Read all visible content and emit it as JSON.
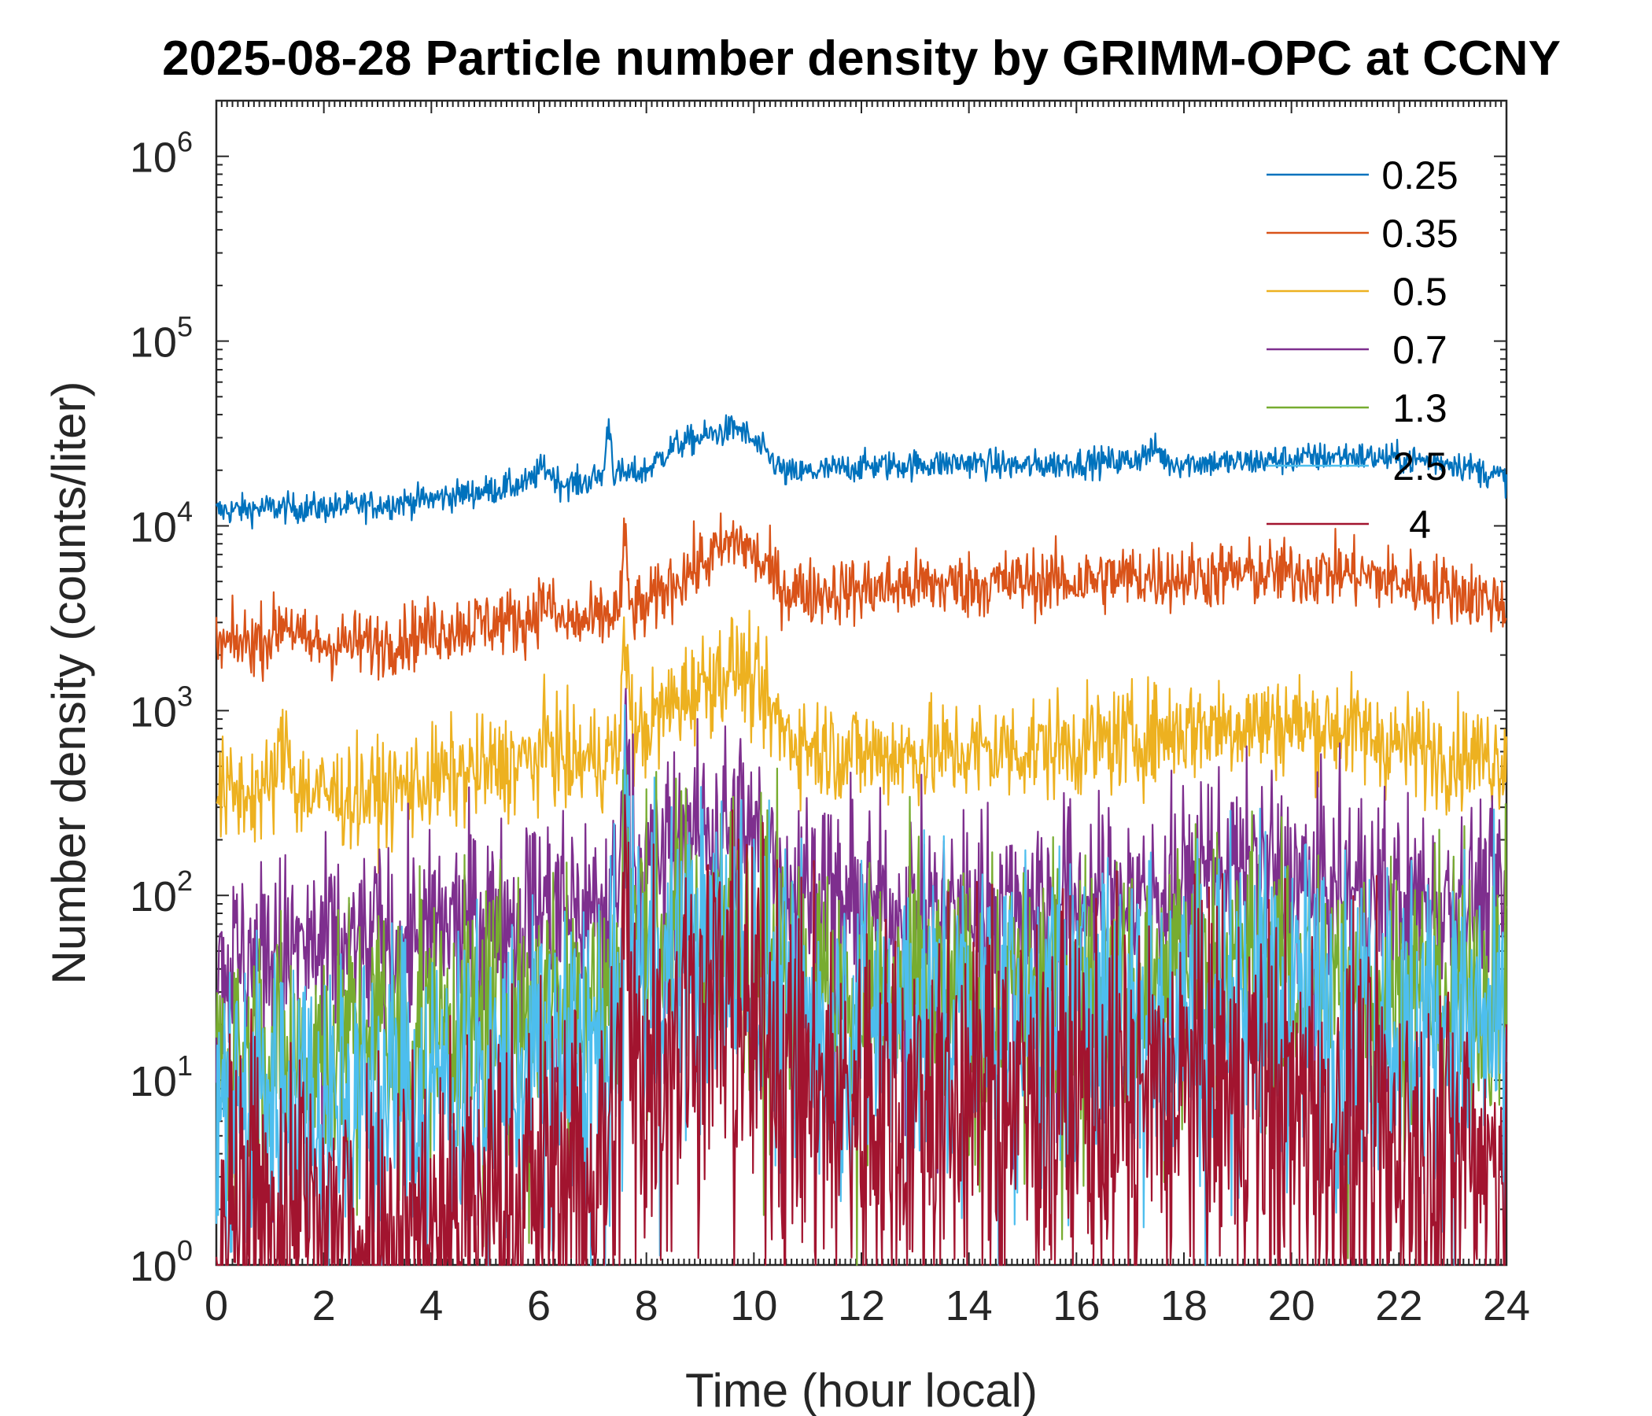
{
  "chart_data": {
    "type": "line",
    "title": "2025-08-28 Particle number density by GRIMM-OPC at CCNY",
    "xlabel": "Time (hour local)",
    "ylabel": "Number density (counts/liter)",
    "xlim": [
      0,
      24
    ],
    "ylim": [
      1,
      2000000
    ],
    "yscale": "log",
    "x_ticks": [
      0,
      2,
      4,
      6,
      8,
      10,
      12,
      14,
      16,
      18,
      20,
      22,
      24
    ],
    "y_ticks": [
      {
        "value": 1,
        "base": "10",
        "exp": "0"
      },
      {
        "value": 10,
        "base": "10",
        "exp": "1"
      },
      {
        "value": 100,
        "base": "10",
        "exp": "2"
      },
      {
        "value": 1000,
        "base": "10",
        "exp": "3"
      },
      {
        "value": 10000,
        "base": "10",
        "exp": "4"
      },
      {
        "value": 100000,
        "base": "10",
        "exp": "5"
      },
      {
        "value": 1000000,
        "base": "10",
        "exp": "6"
      }
    ],
    "legend_position": "top-right",
    "series": [
      {
        "name": "0.25",
        "color": "#0072BD",
        "noise": 0.04,
        "spike_scale": 1.0,
        "points": [
          [
            0,
            12000
          ],
          [
            1,
            12500
          ],
          [
            2,
            12500
          ],
          [
            3,
            13000
          ],
          [
            4,
            14000
          ],
          [
            5,
            15500
          ],
          [
            5.8,
            17000
          ],
          [
            6.1,
            21000
          ],
          [
            6.4,
            17000
          ],
          [
            6.8,
            17000
          ],
          [
            7.2,
            19000
          ],
          [
            7.3,
            38000
          ],
          [
            7.4,
            19000
          ],
          [
            7.7,
            19000
          ],
          [
            8.0,
            20000
          ],
          [
            8.5,
            27000
          ],
          [
            9.0,
            30000
          ],
          [
            9.7,
            34000
          ],
          [
            10.2,
            25000
          ],
          [
            10.6,
            19000
          ],
          [
            11,
            19500
          ],
          [
            12,
            21000
          ],
          [
            13,
            21500
          ],
          [
            14,
            22000
          ],
          [
            15,
            21000
          ],
          [
            16,
            22000
          ],
          [
            17,
            22500
          ],
          [
            17.5,
            26000
          ],
          [
            17.7,
            22000
          ],
          [
            18,
            22000
          ],
          [
            19,
            22000
          ],
          [
            20,
            23000
          ],
          [
            21,
            24000
          ],
          [
            22,
            23000
          ],
          [
            23,
            22000
          ],
          [
            24,
            18000
          ]
        ]
      },
      {
        "name": "0.35",
        "color": "#D95319",
        "noise": 0.09,
        "spike_scale": 2.5,
        "points": [
          [
            0,
            2200
          ],
          [
            1,
            2500
          ],
          [
            1.3,
            3200
          ],
          [
            1.6,
            2300
          ],
          [
            2,
            2300
          ],
          [
            3,
            2300
          ],
          [
            4,
            2700
          ],
          [
            5,
            3000
          ],
          [
            5.8,
            3100
          ],
          [
            6.1,
            4000
          ],
          [
            6.4,
            3000
          ],
          [
            7,
            3000
          ],
          [
            7.5,
            3500
          ],
          [
            7.6,
            8500
          ],
          [
            7.7,
            3500
          ],
          [
            8.0,
            3600
          ],
          [
            8.5,
            5000
          ],
          [
            9.0,
            6200
          ],
          [
            9.7,
            8500
          ],
          [
            10.2,
            6000
          ],
          [
            10.6,
            4500
          ],
          [
            11,
            4400
          ],
          [
            12,
            4500
          ],
          [
            13,
            4800
          ],
          [
            14,
            4800
          ],
          [
            15,
            5000
          ],
          [
            16,
            5000
          ],
          [
            17,
            5300
          ],
          [
            18,
            5300
          ],
          [
            19,
            5500
          ],
          [
            20,
            5500
          ],
          [
            21,
            5600
          ],
          [
            22,
            5000
          ],
          [
            23,
            4500
          ],
          [
            24,
            3800
          ]
        ]
      },
      {
        "name": "0.5",
        "color": "#EDB120",
        "noise": 0.14,
        "spike_scale": 6.0,
        "points": [
          [
            0,
            350
          ],
          [
            1,
            370
          ],
          [
            1.3,
            700
          ],
          [
            1.5,
            380
          ],
          [
            2,
            350
          ],
          [
            3,
            350
          ],
          [
            4,
            420
          ],
          [
            5,
            480
          ],
          [
            6,
            550
          ],
          [
            6.2,
            700
          ],
          [
            6.5,
            520
          ],
          [
            7,
            550
          ],
          [
            7.5,
            600
          ],
          [
            7.6,
            2800
          ],
          [
            7.75,
            700
          ],
          [
            8,
            800
          ],
          [
            8.5,
            1100
          ],
          [
            9,
            1400
          ],
          [
            9.7,
            1800
          ],
          [
            10.2,
            1100
          ],
          [
            10.6,
            750
          ],
          [
            11,
            650
          ],
          [
            12,
            580
          ],
          [
            13,
            580
          ],
          [
            14,
            600
          ],
          [
            15,
            620
          ],
          [
            16,
            650
          ],
          [
            17,
            700
          ],
          [
            18,
            800
          ],
          [
            19,
            850
          ],
          [
            20,
            850
          ],
          [
            21,
            800
          ],
          [
            22,
            650
          ],
          [
            23,
            580
          ],
          [
            24,
            560
          ]
        ]
      },
      {
        "name": "0.7",
        "color": "#7E2F8E",
        "noise": 0.26,
        "spike_scale": 12.0,
        "points": [
          [
            0,
            40
          ],
          [
            1,
            50
          ],
          [
            2,
            50
          ],
          [
            3,
            55
          ],
          [
            4,
            60
          ],
          [
            5,
            75
          ],
          [
            6,
            85
          ],
          [
            7,
            90
          ],
          [
            7.5,
            95
          ],
          [
            7.6,
            1300
          ],
          [
            7.7,
            250
          ],
          [
            7.8,
            150
          ],
          [
            8,
            140
          ],
          [
            8.5,
            200
          ],
          [
            9,
            230
          ],
          [
            9.7,
            250
          ],
          [
            10.3,
            160
          ],
          [
            10.6,
            120
          ],
          [
            11,
            110
          ],
          [
            12,
            85
          ],
          [
            13,
            80
          ],
          [
            14,
            85
          ],
          [
            15,
            90
          ],
          [
            16,
            95
          ],
          [
            17,
            95
          ],
          [
            18,
            110
          ],
          [
            18.5,
            150
          ],
          [
            19,
            150
          ],
          [
            20,
            120
          ],
          [
            21,
            110
          ],
          [
            22,
            100
          ],
          [
            23,
            100
          ],
          [
            24,
            100
          ]
        ]
      },
      {
        "name": "1.3",
        "color": "#77AC30",
        "noise": 0.36,
        "spike_scale": 15.0,
        "points": [
          [
            0,
            12
          ],
          [
            1,
            12
          ],
          [
            2,
            15
          ],
          [
            3,
            18
          ],
          [
            4,
            20
          ],
          [
            5,
            22
          ],
          [
            6,
            25
          ],
          [
            7,
            28
          ],
          [
            7.5,
            30
          ],
          [
            7.6,
            500
          ],
          [
            7.7,
            80
          ],
          [
            8,
            60
          ],
          [
            8.5,
            65
          ],
          [
            9,
            70
          ],
          [
            9.7,
            75
          ],
          [
            10.3,
            50
          ],
          [
            10.6,
            35
          ],
          [
            11,
            30
          ],
          [
            12,
            27
          ],
          [
            13,
            27
          ],
          [
            14,
            28
          ],
          [
            15,
            30
          ],
          [
            16,
            30
          ],
          [
            17,
            30
          ],
          [
            18,
            40
          ],
          [
            19,
            45
          ],
          [
            20,
            38
          ],
          [
            21,
            32
          ],
          [
            22,
            30
          ],
          [
            23,
            30
          ],
          [
            24,
            35
          ]
        ]
      },
      {
        "name": "2.5",
        "color": "#4DBEEE",
        "noise": 0.45,
        "spike_scale": 20.0,
        "points": [
          [
            0,
            8
          ],
          [
            1,
            8
          ],
          [
            2,
            8
          ],
          [
            3,
            8
          ],
          [
            4,
            9
          ],
          [
            5,
            10
          ],
          [
            6,
            12
          ],
          [
            7,
            14
          ],
          [
            7.5,
            15
          ],
          [
            7.6,
            300
          ],
          [
            7.7,
            50
          ],
          [
            8,
            40
          ],
          [
            8.5,
            45
          ],
          [
            9,
            50
          ],
          [
            9.7,
            55
          ],
          [
            10.3,
            35
          ],
          [
            10.6,
            25
          ],
          [
            11,
            22
          ],
          [
            12,
            20
          ],
          [
            13,
            20
          ],
          [
            14,
            20
          ],
          [
            15,
            20
          ],
          [
            16,
            22
          ],
          [
            17,
            22
          ],
          [
            18,
            25
          ],
          [
            19,
            28
          ],
          [
            20,
            25
          ],
          [
            21,
            22
          ],
          [
            22,
            20
          ],
          [
            23,
            18
          ],
          [
            24,
            17
          ]
        ]
      },
      {
        "name": "4",
        "color": "#A2142F",
        "noise": 0.55,
        "spike_scale": 25.0,
        "points": [
          [
            0,
            1.5
          ],
          [
            1,
            1.5
          ],
          [
            2,
            1.5
          ],
          [
            3,
            1.5
          ],
          [
            4,
            1.6
          ],
          [
            5,
            2
          ],
          [
            6,
            2.5
          ],
          [
            7,
            3.5
          ],
          [
            7.5,
            5
          ],
          [
            7.6,
            150
          ],
          [
            7.7,
            15
          ],
          [
            8,
            12
          ],
          [
            8.5,
            22
          ],
          [
            9,
            25
          ],
          [
            9.7,
            25
          ],
          [
            10.3,
            15
          ],
          [
            10.6,
            10
          ],
          [
            11,
            8
          ],
          [
            12,
            7
          ],
          [
            13,
            7
          ],
          [
            14,
            7
          ],
          [
            15,
            7.5
          ],
          [
            16,
            8
          ],
          [
            17,
            7
          ],
          [
            18,
            8
          ],
          [
            19,
            8
          ],
          [
            20,
            7
          ],
          [
            21,
            5
          ],
          [
            22,
            4
          ],
          [
            23,
            4
          ],
          [
            24,
            4
          ]
        ]
      }
    ]
  }
}
